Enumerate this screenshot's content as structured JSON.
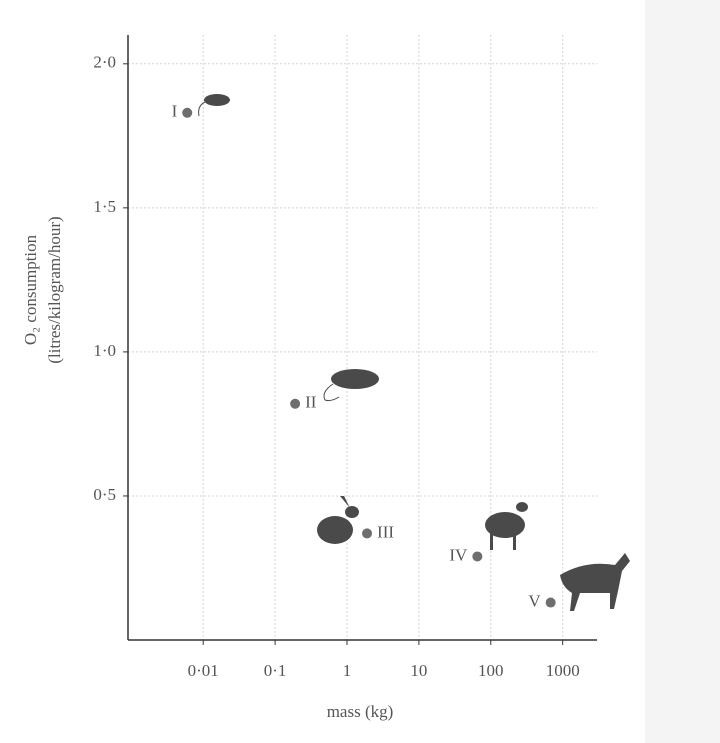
{
  "chart_data": {
    "type": "scatter",
    "x_label": "mass (kg)",
    "y_label": [
      "O₂ consumption",
      "(litres/kilogram/hour)"
    ],
    "x_scale": "log",
    "xlim": [
      0.0009,
      3000
    ],
    "xticks": [
      {
        "value": 0.01,
        "label": "0·01"
      },
      {
        "value": 0.1,
        "label": "0·1"
      },
      1,
      10,
      100,
      1000
    ],
    "ylim": [
      0,
      2.1
    ],
    "yticks": [
      {
        "value": 0.5,
        "label": "0·5"
      },
      {
        "value": 1.0,
        "label": "1·0"
      },
      {
        "value": 1.5,
        "label": "1·5"
      },
      {
        "value": 2.0,
        "label": "2·0"
      }
    ],
    "grid": true,
    "color": "#6e6e6e",
    "labels": [
      "I",
      "II",
      "III",
      "IV",
      "V"
    ],
    "x": [
      0.006,
      0.19,
      1.9,
      65,
      680
    ],
    "values": [
      1.83,
      0.82,
      0.37,
      0.29,
      0.13
    ]
  }
}
